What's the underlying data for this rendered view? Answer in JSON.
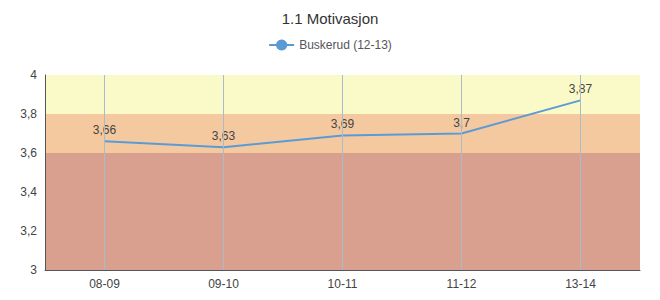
{
  "chart_data": {
    "type": "line",
    "title": "1.1 Motivasjon",
    "categories": [
      "08-09",
      "09-10",
      "10-11",
      "11-12",
      "13-14"
    ],
    "series": [
      {
        "name": "Buskerud (12-13)",
        "color": "#5B9BD5",
        "values": [
          3.66,
          3.63,
          3.69,
          3.7,
          3.87
        ],
        "value_labels": [
          "3,66",
          "3,63",
          "3,69",
          "3,7",
          "3,87"
        ]
      }
    ],
    "data_labels": true,
    "ylim": [
      3.0,
      4.0
    ],
    "yticks": [
      3,
      {
        "value": 3.2,
        "label": "3,2"
      },
      {
        "value": 3.4,
        "label": "3,4"
      },
      {
        "value": 3.6,
        "label": "3,6"
      },
      {
        "value": 3.8,
        "label": "3,8"
      },
      4
    ],
    "bands": [
      {
        "from": 3.0,
        "to": 3.6,
        "color": "#D9A090"
      },
      {
        "from": 3.6,
        "to": 3.8,
        "color": "#F5C9A0"
      },
      {
        "from": 3.8,
        "to": 4.0,
        "color": "#FAFAC8"
      }
    ],
    "grid": true,
    "legend": "top"
  }
}
